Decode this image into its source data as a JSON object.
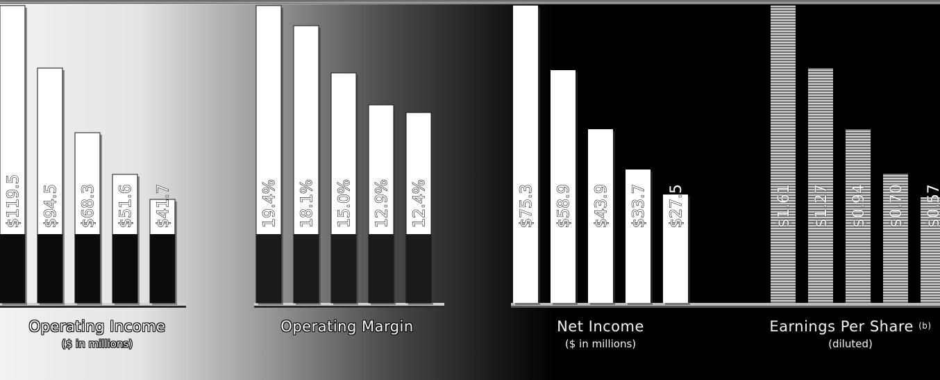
{
  "chart_data": [
    {
      "type": "bar",
      "title": "Operating Income",
      "subtitle": "($ in millions)",
      "values": [
        119.5,
        94.5,
        68.3,
        51.6,
        41.7
      ],
      "labels": [
        "$119.5",
        "$94.5",
        "$68.3",
        "$51.6",
        "$41.7"
      ],
      "style": "white-top-dark-base",
      "colors": {
        "bar": "#ffffff",
        "base": "#0c0c0c"
      }
    },
    {
      "type": "bar",
      "title": "Operating Margin",
      "subtitle": "",
      "values": [
        19.4,
        18.1,
        15.0,
        12.9,
        12.4
      ],
      "labels": [
        "19.4%",
        "18.1%",
        "15.0%",
        "12.9%",
        "12.4%"
      ],
      "style": "white-top-dark-base",
      "colors": {
        "bar": "#ffffff",
        "base": "#1a1a1a"
      }
    },
    {
      "type": "bar",
      "title": "Net Income",
      "subtitle": "($ in millions)",
      "values": [
        75.3,
        58.9,
        43.9,
        33.7,
        27.5
      ],
      "labels": [
        "$75.3",
        "$58.9",
        "$43.9",
        "$33.7",
        "$27.5"
      ],
      "style": "white",
      "colors": {
        "bar": "#ffffff",
        "base": "#000000"
      }
    },
    {
      "type": "bar",
      "title": "Earnings Per Share",
      "title_note": "(b)",
      "subtitle": "(diluted)",
      "values": [
        1.61,
        1.27,
        0.94,
        0.7,
        0.57
      ],
      "labels": [
        "$1.61",
        "$1.27",
        "$0.94",
        "$0.70",
        "$0.57"
      ],
      "style": "striped",
      "colors": {
        "bar": "#bdbdbd",
        "base": "#000000"
      }
    }
  ]
}
